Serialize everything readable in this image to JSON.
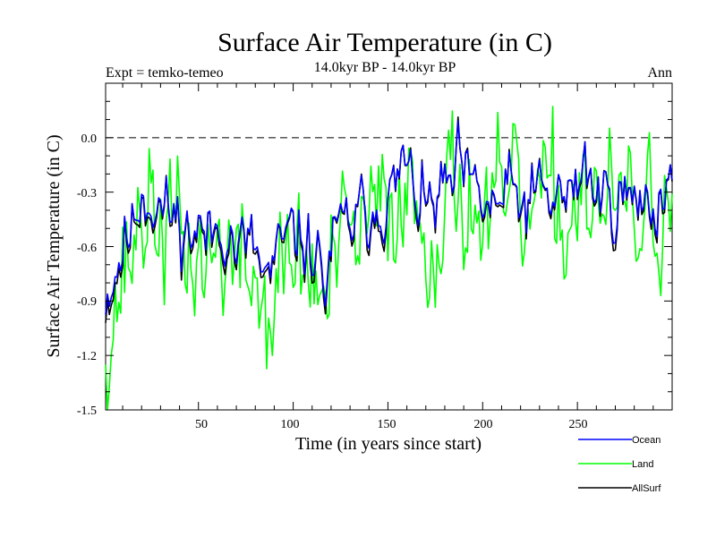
{
  "chart_data": {
    "type": "line",
    "title": "Surface Air Temperature (in C)",
    "subtitle": "14.0kyr BP - 14.0kyr BP",
    "left_note": "Expt = temko-temeo",
    "right_note": "Ann",
    "xlabel": "Time (in years since start)",
    "ylabel": "Surface Air Temperature (in C)",
    "xlim": [
      1,
      300
    ],
    "ylim": [
      -1.5,
      0.3
    ],
    "xticks": [
      50,
      100,
      150,
      200,
      250
    ],
    "yticks": [
      -1.5,
      -1.2,
      -0.9,
      -0.6,
      -0.3,
      0.0
    ],
    "ytick_labels": [
      "-1.5",
      "-1.2",
      "-0.9",
      "-0.6",
      "-0.3",
      "0.0"
    ],
    "reference_line": 0.0,
    "knots": {
      "x": [
        1,
        5,
        10,
        15,
        20,
        25,
        30,
        40,
        45,
        50,
        55,
        60,
        65,
        70,
        75,
        80,
        85,
        90,
        95,
        100,
        105,
        110,
        115,
        117,
        120,
        125,
        130,
        135,
        140,
        145,
        150,
        155,
        158,
        160,
        165,
        170,
        175,
        180,
        185,
        188,
        190,
        195,
        200,
        205,
        210,
        215,
        220,
        225,
        230,
        235,
        240,
        245,
        250,
        254,
        257,
        260,
        265,
        270,
        275,
        280,
        285,
        290,
        295,
        300
      ],
      "y": [
        -0.86,
        -0.76,
        -0.6,
        -0.5,
        -0.28,
        -0.34,
        -0.38,
        -0.46,
        -0.52,
        -0.5,
        -0.56,
        -0.5,
        -0.46,
        -0.62,
        -0.58,
        -0.62,
        -0.78,
        -0.72,
        -0.58,
        -0.54,
        -0.56,
        -0.6,
        -0.7,
        -0.84,
        -0.6,
        -0.52,
        -0.46,
        -0.44,
        -0.4,
        -0.34,
        -0.34,
        -0.28,
        -0.08,
        -0.22,
        -0.3,
        -0.4,
        -0.36,
        -0.3,
        -0.26,
        -0.12,
        -0.24,
        -0.3,
        -0.36,
        -0.4,
        -0.34,
        -0.3,
        -0.38,
        -0.34,
        -0.3,
        -0.36,
        -0.3,
        -0.34,
        -0.28,
        -0.06,
        -0.28,
        -0.3,
        -0.32,
        -0.34,
        -0.3,
        -0.4,
        -0.32,
        -0.38,
        -0.28,
        -0.22
      ]
    },
    "series": [
      {
        "name": "Ocean",
        "color": "#0000ff",
        "seed": 11,
        "noise": 0.09,
        "scale": 1.0
      },
      {
        "name": "Land",
        "color": "#00ff00",
        "seed": 37,
        "noise": 0.19,
        "scale": 1.25
      },
      {
        "name": "AllSurf",
        "color": "#000000",
        "seed": 11,
        "noise": 0.1,
        "scale": 1.04
      }
    ]
  }
}
